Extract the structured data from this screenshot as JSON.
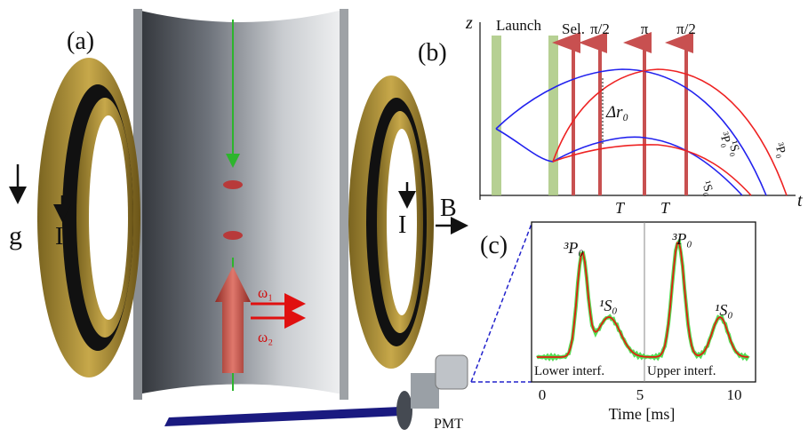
{
  "panel_a": {
    "label": "(a)",
    "gravity": "g",
    "current_left": "I",
    "current_right": "I",
    "field": "B",
    "beam_1": "ω₁",
    "beam_2": "ω₂",
    "detector": "PMT"
  },
  "panel_b": {
    "label": "(b)",
    "z_axis": "z",
    "t_axis": "t",
    "launch": "Launch",
    "pulses": [
      "Sel.",
      "π/2",
      "π",
      "π/2"
    ],
    "separation": "Δr₀",
    "intervals": [
      "T",
      "T"
    ],
    "state_labels": [
      "¹S₀",
      "³P₀",
      "¹S₀",
      "³P₀"
    ]
  },
  "panel_c": {
    "label": "(c)",
    "peaks": [
      "³P₀",
      "¹S₀",
      "³P₀",
      "¹S₀"
    ],
    "sections": [
      "Lower interf.",
      "Upper interf."
    ],
    "x_ticks": [
      0,
      5,
      10
    ],
    "x_label": "Time [ms]"
  }
}
